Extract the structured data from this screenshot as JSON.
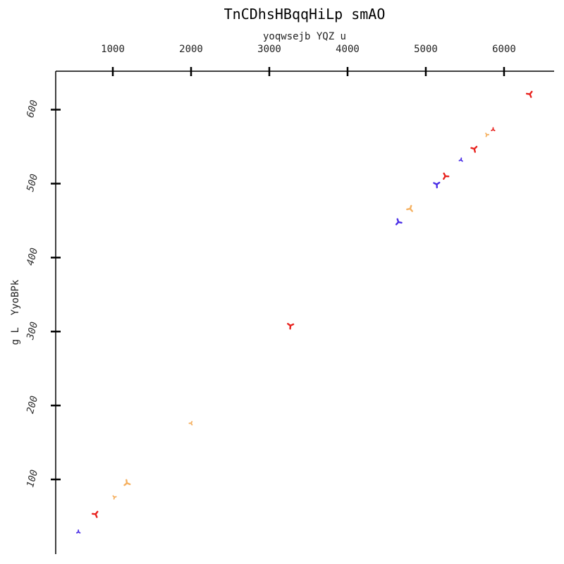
{
  "chart_data": {
    "type": "scatter",
    "title": "TnCDhsHBqqHiLp smAO",
    "xlabel": "yoqwsejb YQZ u",
    "ylabel": "g L  YyoBPk",
    "xlim": [
      270,
      6640
    ],
    "ylim": [
      -1,
      652
    ],
    "x_ticks": [
      1000,
      2000,
      3000,
      4000,
      5000,
      6000
    ],
    "y_ticks": [
      100,
      200,
      300,
      400,
      500,
      600
    ],
    "x_axis_position": "top",
    "grid": false,
    "colors": {
      "red": "#e8231f",
      "orange": "#f5b060",
      "blue": "#4a2ee6"
    },
    "points": [
      {
        "x": 560,
        "y": 29,
        "color": "blue",
        "size": "small"
      },
      {
        "x": 780,
        "y": 53,
        "color": "red",
        "size": "large"
      },
      {
        "x": 1020,
        "y": 76,
        "color": "orange",
        "size": "small"
      },
      {
        "x": 1180,
        "y": 95,
        "color": "orange",
        "size": "large"
      },
      {
        "x": 2000,
        "y": 176,
        "color": "orange",
        "size": "small"
      },
      {
        "x": 3270,
        "y": 308,
        "color": "red",
        "size": "large"
      },
      {
        "x": 4650,
        "y": 448,
        "color": "blue",
        "size": "large"
      },
      {
        "x": 4800,
        "y": 466,
        "color": "orange",
        "size": "large"
      },
      {
        "x": 5140,
        "y": 499,
        "color": "blue",
        "size": "large"
      },
      {
        "x": 5250,
        "y": 510,
        "color": "red",
        "size": "large"
      },
      {
        "x": 5450,
        "y": 532,
        "color": "blue",
        "size": "small"
      },
      {
        "x": 5620,
        "y": 547,
        "color": "red",
        "size": "large"
      },
      {
        "x": 5780,
        "y": 566,
        "color": "orange",
        "size": "small"
      },
      {
        "x": 5860,
        "y": 573,
        "color": "red",
        "size": "small"
      },
      {
        "x": 6330,
        "y": 621,
        "color": "red",
        "size": "large"
      }
    ]
  }
}
